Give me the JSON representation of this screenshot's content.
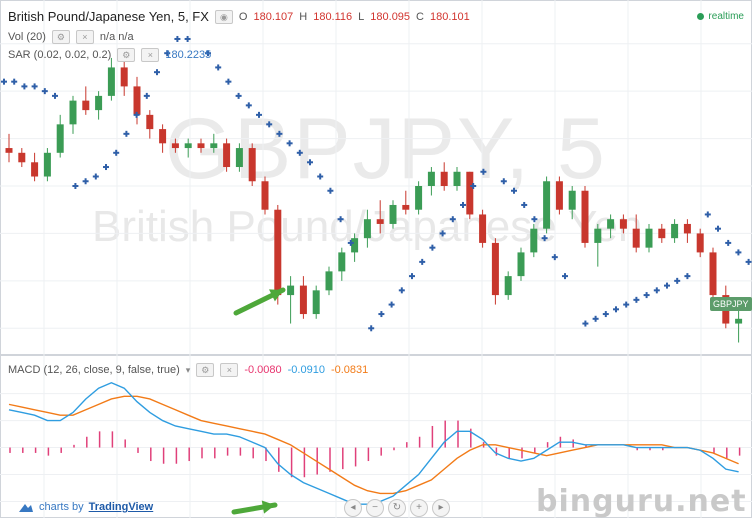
{
  "header": {
    "symbol_title": "British Pound/Japanese Yen, 5, FX",
    "ohlc": [
      {
        "label": "O",
        "value": "180.107"
      },
      {
        "label": "H",
        "value": "180.116"
      },
      {
        "label": "L",
        "value": "180.095"
      },
      {
        "label": "C",
        "value": "180.101"
      }
    ],
    "realtime": "realtime"
  },
  "indicators": {
    "vol_label": "Vol (20)",
    "vol_values": "n/a  n/a",
    "sar_label": "SAR (0.02, 0.02, 0.2)",
    "sar_value": "180.2235",
    "macd_label": "MACD (12, 26, close, 9, false, true)",
    "macd_values": [
      "-0.0080",
      "-0.0910",
      "-0.0831"
    ]
  },
  "watermark": {
    "ticker": "GBPJPY, 5",
    "name": "British Pound/Japanese Yen"
  },
  "price_tag": "GBPJPY",
  "footer": {
    "charts_by": "charts by",
    "brand": "TradingView",
    "site_watermark": "binguru.net"
  },
  "colors": {
    "up": "#3b9c55",
    "down": "#c8372d",
    "sar": "#2f5fa8",
    "macd_line": "#2f9de0",
    "signal_line": "#f27b18",
    "histogram": "#e0407a",
    "arrow": "#4ea83a"
  },
  "icons": [
    "settings-icon",
    "eye-icon",
    "close-icon",
    "dropdown-icon",
    "zoom-out-icon",
    "reset-icon",
    "zoom-in-icon",
    "scroll-left-icon",
    "scroll-right-icon",
    "cloud-logo-icon"
  ],
  "chart_data": [
    {
      "type": "candlestick",
      "panel": "price",
      "series_name": "GBPJPY",
      "candles": [
        [
          180.13,
          180.16,
          180.1,
          180.12
        ],
        [
          180.12,
          180.13,
          180.09,
          180.1
        ],
        [
          180.1,
          180.12,
          180.06,
          180.07
        ],
        [
          180.07,
          180.13,
          180.06,
          180.12
        ],
        [
          180.12,
          180.2,
          180.11,
          180.18
        ],
        [
          180.18,
          180.24,
          180.16,
          180.23
        ],
        [
          180.23,
          180.26,
          180.2,
          180.21
        ],
        [
          180.21,
          180.25,
          180.19,
          180.24
        ],
        [
          180.24,
          180.32,
          180.23,
          180.3
        ],
        [
          180.3,
          180.33,
          180.24,
          180.26
        ],
        [
          180.26,
          180.28,
          180.18,
          180.2
        ],
        [
          180.2,
          180.21,
          180.15,
          180.17
        ],
        [
          180.17,
          180.18,
          180.12,
          180.14
        ],
        [
          180.14,
          180.15,
          180.12,
          180.13
        ],
        [
          180.13,
          180.15,
          180.11,
          180.14
        ],
        [
          180.14,
          180.15,
          180.12,
          180.13
        ],
        [
          180.13,
          180.16,
          180.12,
          180.14
        ],
        [
          180.14,
          180.15,
          180.08,
          180.09
        ],
        [
          180.09,
          180.14,
          180.08,
          180.13
        ],
        [
          180.13,
          180.14,
          180.05,
          180.06
        ],
        [
          180.06,
          180.07,
          179.99,
          180.0
        ],
        [
          180.0,
          180.01,
          179.8,
          179.82
        ],
        [
          179.82,
          179.86,
          179.76,
          179.84
        ],
        [
          179.84,
          179.86,
          179.77,
          179.78
        ],
        [
          179.78,
          179.84,
          179.77,
          179.83
        ],
        [
          179.83,
          179.88,
          179.82,
          179.87
        ],
        [
          179.87,
          179.92,
          179.85,
          179.91
        ],
        [
          179.91,
          179.95,
          179.89,
          179.94
        ],
        [
          179.94,
          180.0,
          179.92,
          179.98
        ],
        [
          179.98,
          180.02,
          179.95,
          179.97
        ],
        [
          179.97,
          180.02,
          179.96,
          180.01
        ],
        [
          180.01,
          180.04,
          179.99,
          180.0
        ],
        [
          180.0,
          180.06,
          179.99,
          180.05
        ],
        [
          180.05,
          180.09,
          180.03,
          180.08
        ],
        [
          180.08,
          180.1,
          180.04,
          180.05
        ],
        [
          180.05,
          180.09,
          180.04,
          180.08
        ],
        [
          180.08,
          180.08,
          179.98,
          179.99
        ],
        [
          179.99,
          180.0,
          179.92,
          179.93
        ],
        [
          179.93,
          179.94,
          179.8,
          179.82
        ],
        [
          179.82,
          179.87,
          179.81,
          179.86
        ],
        [
          179.86,
          179.92,
          179.85,
          179.91
        ],
        [
          179.91,
          179.97,
          179.9,
          179.96
        ],
        [
          179.96,
          180.07,
          179.95,
          180.06
        ],
        [
          180.06,
          180.07,
          179.99,
          180.0
        ],
        [
          180.0,
          180.05,
          179.98,
          180.04
        ],
        [
          180.04,
          180.05,
          179.92,
          179.93
        ],
        [
          179.93,
          179.97,
          179.88,
          179.96
        ],
        [
          179.96,
          179.99,
          179.94,
          179.98
        ],
        [
          179.98,
          179.99,
          179.95,
          179.96
        ],
        [
          179.96,
          179.99,
          179.91,
          179.92
        ],
        [
          179.92,
          179.97,
          179.91,
          179.96
        ],
        [
          179.96,
          179.97,
          179.93,
          179.94
        ],
        [
          179.94,
          179.98,
          179.93,
          179.97
        ],
        [
          179.97,
          179.98,
          179.93,
          179.95
        ],
        [
          179.95,
          179.96,
          179.9,
          179.91
        ],
        [
          179.91,
          179.92,
          179.8,
          179.82
        ],
        [
          179.82,
          179.84,
          179.75,
          179.76
        ],
        [
          179.76,
          179.79,
          179.72,
          179.77
        ]
      ],
      "sar_segments": [
        [
          180.27,
          180.27,
          180.26,
          180.26,
          180.25,
          180.24
        ],
        [
          180.05,
          180.06,
          180.07,
          180.09,
          180.12,
          180.16,
          180.2,
          180.24,
          180.29,
          180.33,
          180.36,
          180.36
        ],
        [
          180.33,
          180.3,
          180.27,
          180.24,
          180.22,
          180.2,
          180.18,
          180.16,
          180.14,
          180.12,
          180.1,
          180.07,
          180.04,
          179.98,
          179.93
        ],
        [
          179.75,
          179.78,
          179.8,
          179.83,
          179.86,
          179.89,
          179.92,
          179.95,
          179.98,
          180.01,
          180.05,
          180.08
        ],
        [
          180.06,
          180.04,
          180.01,
          179.98,
          179.94,
          179.9,
          179.86
        ],
        [
          179.76,
          179.77,
          179.78,
          179.79,
          179.8,
          179.81,
          179.82,
          179.83,
          179.84,
          179.85,
          179.86
        ],
        [
          179.99,
          179.96,
          179.93,
          179.91,
          179.89
        ]
      ],
      "ylim": [
        179.7,
        180.4
      ]
    },
    {
      "type": "line",
      "panel": "macd",
      "series": [
        {
          "name": "MACD",
          "values": [
            0.14,
            0.13,
            0.12,
            0.1,
            0.1,
            0.13,
            0.18,
            0.22,
            0.24,
            0.22,
            0.17,
            0.13,
            0.1,
            0.08,
            0.07,
            0.06,
            0.05,
            0.05,
            0.04,
            0.02,
            0.0,
            -0.06,
            -0.1,
            -0.13,
            -0.15,
            -0.17,
            -0.19,
            -0.21,
            -0.21,
            -0.2,
            -0.18,
            -0.14,
            -0.1,
            -0.04,
            0.02,
            0.06,
            0.06,
            0.03,
            -0.02,
            -0.04,
            -0.05,
            -0.04,
            -0.01,
            0.02,
            0.02,
            0.01,
            0.01,
            0.01,
            0.01,
            0.0,
            0.0,
            0.0,
            0.0,
            0.0,
            -0.01,
            -0.04,
            -0.08,
            -0.09
          ]
        },
        {
          "name": "Signal",
          "values": [
            0.16,
            0.15,
            0.14,
            0.13,
            0.12,
            0.12,
            0.14,
            0.16,
            0.18,
            0.19,
            0.19,
            0.18,
            0.16,
            0.14,
            0.12,
            0.1,
            0.09,
            0.08,
            0.07,
            0.06,
            0.05,
            0.03,
            0.01,
            -0.02,
            -0.05,
            -0.08,
            -0.11,
            -0.14,
            -0.16,
            -0.17,
            -0.17,
            -0.16,
            -0.14,
            -0.12,
            -0.08,
            -0.04,
            -0.01,
            0.01,
            0.01,
            0.0,
            -0.01,
            -0.02,
            -0.03,
            -0.02,
            -0.01,
            0.0,
            0.01,
            0.01,
            0.01,
            0.01,
            0.01,
            0.01,
            0.0,
            0.0,
            -0.01,
            -0.02,
            -0.04,
            -0.06
          ]
        },
        {
          "name": "Histogram",
          "values": [
            -0.02,
            -0.02,
            -0.02,
            -0.03,
            -0.02,
            0.01,
            0.04,
            0.06,
            0.06,
            0.03,
            -0.02,
            -0.05,
            -0.06,
            -0.06,
            -0.05,
            -0.04,
            -0.04,
            -0.03,
            -0.03,
            -0.04,
            -0.05,
            -0.09,
            -0.11,
            -0.11,
            -0.1,
            -0.09,
            -0.08,
            -0.07,
            -0.05,
            -0.03,
            -0.01,
            0.02,
            0.04,
            0.08,
            0.1,
            0.1,
            0.07,
            0.02,
            -0.03,
            -0.04,
            -0.04,
            -0.02,
            0.02,
            0.04,
            0.03,
            0.01,
            0.0,
            0.0,
            0.0,
            -0.01,
            -0.01,
            -0.01,
            0.0,
            0.0,
            0.0,
            -0.02,
            -0.04,
            -0.03
          ]
        }
      ],
      "ylim": [
        -0.25,
        0.28
      ]
    }
  ]
}
